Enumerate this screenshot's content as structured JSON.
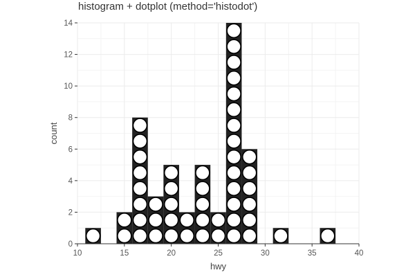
{
  "title": "histogram + dotplot (method='histodot')",
  "chart_data": {
    "type": "bar",
    "title": "histogram + dotplot (method='histodot')",
    "xlabel": "hwy",
    "ylabel": "count",
    "xlim": [
      10,
      40
    ],
    "ylim": [
      0,
      14
    ],
    "x_ticks": [
      10,
      15,
      20,
      25,
      30,
      35,
      40
    ],
    "y_ticks": [
      0,
      2,
      4,
      6,
      8,
      10,
      12,
      14
    ],
    "grid": true,
    "legend": "none",
    "bin_width": 1.667,
    "bins": [
      {
        "x": 11.667,
        "count": 1
      },
      {
        "x": 15.0,
        "count": 2
      },
      {
        "x": 16.667,
        "count": 8
      },
      {
        "x": 18.333,
        "count": 3
      },
      {
        "x": 20.0,
        "count": 5
      },
      {
        "x": 21.667,
        "count": 2
      },
      {
        "x": 23.333,
        "count": 5
      },
      {
        "x": 25.0,
        "count": 2
      },
      {
        "x": 26.667,
        "count": 14
      },
      {
        "x": 28.333,
        "count": 6
      },
      {
        "x": 31.667,
        "count": 1
      },
      {
        "x": 36.667,
        "count": 1
      }
    ],
    "bar_color": "#222222",
    "dot_fill": "#ffffff",
    "dot_stroke": "#000000",
    "grid_color": "#ebebeb",
    "axis_color": "#333333"
  }
}
